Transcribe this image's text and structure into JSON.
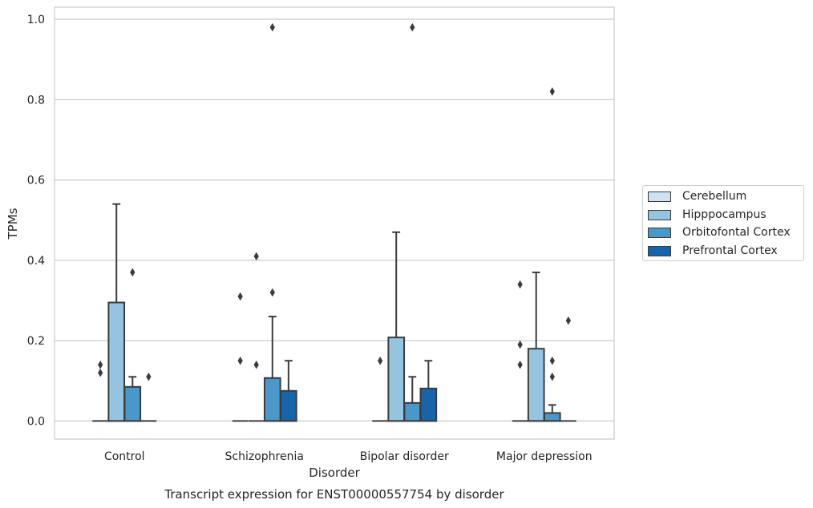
{
  "chart_data": {
    "type": "box",
    "title": "Transcript expression for ENST00000557754 by disorder",
    "xlabel": "Disorder",
    "ylabel": "TPMs",
    "ylim": [
      -0.045,
      1.03
    ],
    "yticks": [
      "0.0",
      "0.2",
      "0.4",
      "0.6",
      "0.8",
      "1.0"
    ],
    "grid": true,
    "legend_position": "right",
    "categories": [
      "Control",
      "Schizophrenia",
      "Bipolar disorder",
      "Major depression"
    ],
    "series": [
      {
        "name": "Cerebellum",
        "color": "#d0e1f2",
        "boxes": [
          {
            "q1": 0,
            "median": 0,
            "q3": 0,
            "whislo": 0,
            "whishi": 0,
            "fliers": [
              0.14,
              0.12
            ]
          },
          {
            "q1": 0,
            "median": 0,
            "q3": 0,
            "whislo": 0,
            "whishi": 0,
            "fliers": [
              0.31,
              0.15
            ]
          },
          {
            "q1": 0,
            "median": 0,
            "q3": 0,
            "whislo": 0,
            "whishi": 0,
            "fliers": [
              0.15
            ]
          },
          {
            "q1": 0,
            "median": 0,
            "q3": 0,
            "whislo": 0,
            "whishi": 0,
            "fliers": [
              0.34,
              0.19,
              0.14
            ]
          }
        ]
      },
      {
        "name": "Hipppocampus",
        "color": "#94c4df",
        "boxes": [
          {
            "q1": 0,
            "median": 0,
            "q3": 0.295,
            "whislo": 0,
            "whishi": 0.54,
            "fliers": []
          },
          {
            "q1": 0,
            "median": 0,
            "q3": 0,
            "whislo": 0,
            "whishi": 0,
            "fliers": [
              0.41,
              0.14
            ]
          },
          {
            "q1": 0,
            "median": 0,
            "q3": 0.208,
            "whislo": 0,
            "whishi": 0.47,
            "fliers": []
          },
          {
            "q1": 0,
            "median": 0,
            "q3": 0.18,
            "whislo": 0,
            "whishi": 0.37,
            "fliers": []
          }
        ]
      },
      {
        "name": "Orbitofontal Cortex",
        "color": "#4a98c9",
        "boxes": [
          {
            "q1": 0,
            "median": 0,
            "q3": 0.085,
            "whislo": 0,
            "whishi": 0.11,
            "fliers": [
              0.37
            ]
          },
          {
            "q1": 0,
            "median": 0,
            "q3": 0.107,
            "whislo": 0,
            "whishi": 0.26,
            "fliers": [
              0.98,
              0.32
            ]
          },
          {
            "q1": 0,
            "median": 0,
            "q3": 0.045,
            "whislo": 0,
            "whishi": 0.11,
            "fliers": [
              0.98
            ]
          },
          {
            "q1": 0,
            "median": 0,
            "q3": 0.02,
            "whislo": 0,
            "whishi": 0.04,
            "fliers": [
              0.82,
              0.15,
              0.11
            ]
          }
        ]
      },
      {
        "name": "Prefrontal Cortex",
        "color": "#1764ab",
        "boxes": [
          {
            "q1": 0,
            "median": 0,
            "q3": 0,
            "whislo": 0,
            "whishi": 0,
            "fliers": [
              0.11
            ]
          },
          {
            "q1": 0,
            "median": 0,
            "q3": 0.075,
            "whislo": 0,
            "whishi": 0.15,
            "fliers": []
          },
          {
            "q1": 0,
            "median": 0,
            "q3": 0.081,
            "whislo": 0,
            "whishi": 0.15,
            "fliers": []
          },
          {
            "q1": 0,
            "median": 0,
            "q3": 0,
            "whislo": 0,
            "whishi": 0,
            "fliers": [
              0.25
            ]
          }
        ]
      }
    ]
  }
}
